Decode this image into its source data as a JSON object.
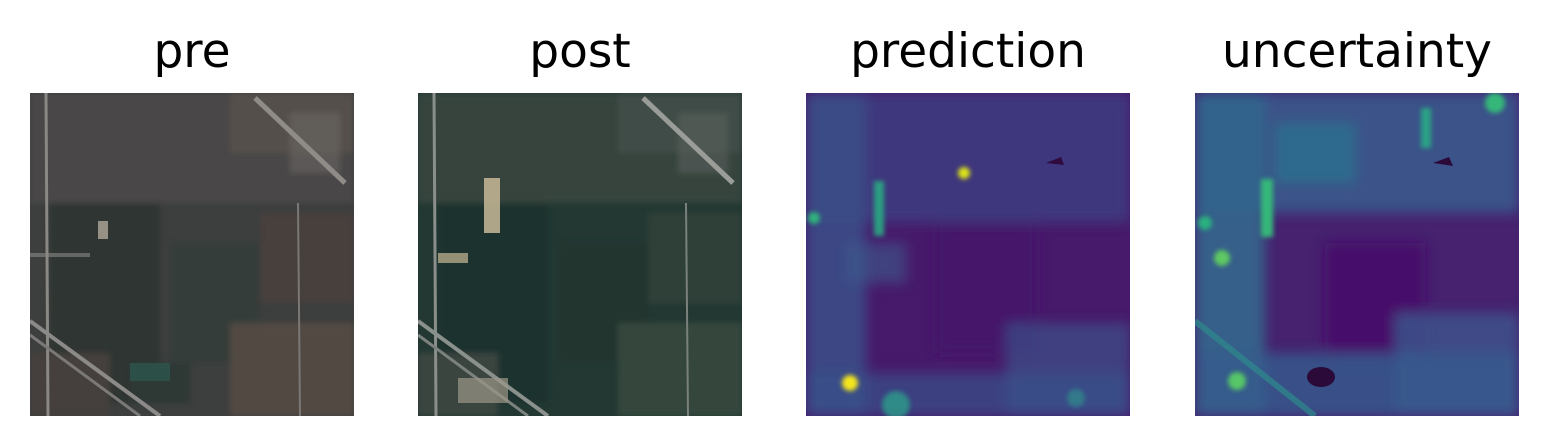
{
  "panels": [
    {
      "id": "pre",
      "title": "pre"
    },
    {
      "id": "post",
      "title": "post"
    },
    {
      "id": "prediction",
      "title": "prediction"
    },
    {
      "id": "uncertainty",
      "title": "uncertainty"
    }
  ],
  "colors": {
    "background": "#ffffff",
    "pre_base": "#3c3d3e",
    "post_base": "#233a35",
    "colormap": "viridis",
    "viridis_low": "#440154",
    "viridis_mid": "#21918c",
    "viridis_high": "#fde725"
  }
}
